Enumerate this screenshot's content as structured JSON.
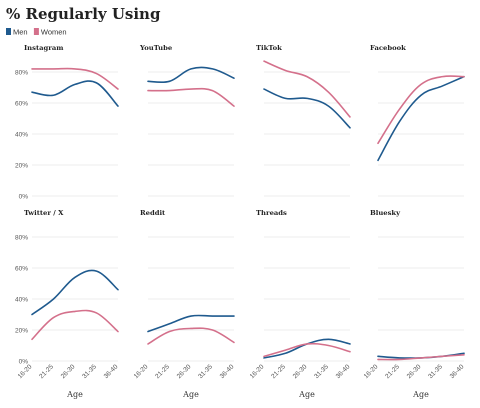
{
  "title": "% Regularly Using",
  "legend": [
    {
      "name": "Men",
      "color": "#1f5a8e"
    },
    {
      "name": "Women",
      "color": "#d4708b"
    }
  ],
  "chart_data": {
    "type": "line",
    "title": "% Regularly Using",
    "xlabel": "Age",
    "categories": [
      "16-20",
      "21-25",
      "26-30",
      "31-35",
      "36-40"
    ],
    "ylim": [
      0,
      0.9
    ],
    "yticks": [
      "0%",
      "20%",
      "40%",
      "60%",
      "80%"
    ],
    "grid": true,
    "legend_position": "top-left",
    "panels": [
      {
        "name": "Instagram",
        "series": [
          {
            "name": "Men",
            "values": [
              0.67,
              0.65,
              0.72,
              0.73,
              0.58
            ]
          },
          {
            "name": "Women",
            "values": [
              0.82,
              0.82,
              0.82,
              0.79,
              0.69
            ]
          }
        ]
      },
      {
        "name": "YouTube",
        "series": [
          {
            "name": "Men",
            "values": [
              0.74,
              0.74,
              0.82,
              0.82,
              0.76
            ]
          },
          {
            "name": "Women",
            "values": [
              0.68,
              0.68,
              0.69,
              0.68,
              0.58
            ]
          }
        ]
      },
      {
        "name": "TikTok",
        "series": [
          {
            "name": "Men",
            "values": [
              0.69,
              0.63,
              0.63,
              0.58,
              0.44
            ]
          },
          {
            "name": "Women",
            "values": [
              0.87,
              0.81,
              0.77,
              0.67,
              0.51
            ]
          }
        ]
      },
      {
        "name": "Facebook",
        "series": [
          {
            "name": "Men",
            "values": [
              0.23,
              0.48,
              0.65,
              0.71,
              0.77
            ]
          },
          {
            "name": "Women",
            "values": [
              0.34,
              0.56,
              0.72,
              0.77,
              0.77
            ]
          }
        ]
      },
      {
        "name": "Twitter / X",
        "series": [
          {
            "name": "Men",
            "values": [
              0.3,
              0.4,
              0.54,
              0.58,
              0.46
            ]
          },
          {
            "name": "Women",
            "values": [
              0.14,
              0.28,
              0.32,
              0.31,
              0.19
            ]
          }
        ]
      },
      {
        "name": "Reddit",
        "series": [
          {
            "name": "Men",
            "values": [
              0.19,
              0.24,
              0.29,
              0.29,
              0.29
            ]
          },
          {
            "name": "Women",
            "values": [
              0.11,
              0.19,
              0.21,
              0.2,
              0.12
            ]
          }
        ]
      },
      {
        "name": "Threads",
        "series": [
          {
            "name": "Men",
            "values": [
              0.02,
              0.05,
              0.11,
              0.14,
              0.11
            ]
          },
          {
            "name": "Women",
            "values": [
              0.03,
              0.07,
              0.11,
              0.1,
              0.06
            ]
          }
        ]
      },
      {
        "name": "Bluesky",
        "series": [
          {
            "name": "Men",
            "values": [
              0.03,
              0.02,
              0.02,
              0.03,
              0.05
            ]
          },
          {
            "name": "Women",
            "values": [
              0.01,
              0.01,
              0.02,
              0.03,
              0.04
            ]
          }
        ]
      }
    ]
  }
}
